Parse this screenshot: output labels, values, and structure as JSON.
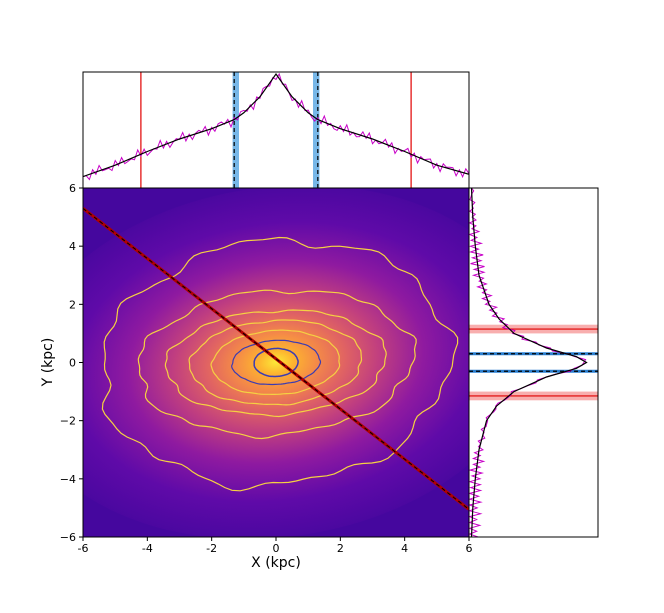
{
  "chart_data": {
    "type": "heatmap",
    "title": "",
    "xlabel": "X (kpc)",
    "ylabel": "Y (kpc)",
    "xlim": [
      -6,
      6
    ],
    "ylim": [
      -6,
      6
    ],
    "xticks": [
      "-6",
      "-4",
      "-2",
      "0",
      "2",
      "4",
      "6"
    ],
    "yticks": [
      "6",
      "4",
      "2",
      "0",
      "−2",
      "−4",
      "−6"
    ],
    "colormap": "plasma",
    "contour_color": "#f5d142",
    "inner_contour_color": "#3b3bb3",
    "bar_line": {
      "x": [
        -6,
        6
      ],
      "y": [
        5.3,
        -5.05
      ],
      "color_outer": "#b00000",
      "color_inner": "#000000"
    },
    "top_panel": {
      "profile_color": "#c800c8",
      "model_color": "#000000",
      "red_lines_x": [
        -4.2,
        4.2
      ],
      "dashed_lines_x": [
        -1.3,
        1.3
      ],
      "blue_band_x": [
        [
          -1.35,
          -1.15
        ],
        [
          1.15,
          1.35
        ]
      ],
      "model_profile": [
        [
          -6,
          0.1
        ],
        [
          -5,
          0.2
        ],
        [
          -4,
          0.32
        ],
        [
          -3,
          0.43
        ],
        [
          -2,
          0.52
        ],
        [
          -1.3,
          0.6
        ],
        [
          -1,
          0.66
        ],
        [
          -0.5,
          0.8
        ],
        [
          0,
          1.0
        ],
        [
          0.5,
          0.8
        ],
        [
          1,
          0.66
        ],
        [
          1.3,
          0.6
        ],
        [
          2,
          0.52
        ],
        [
          3,
          0.43
        ],
        [
          4,
          0.32
        ],
        [
          5,
          0.2
        ],
        [
          6,
          0.12
        ]
      ]
    },
    "right_panel": {
      "profile_color": "#c800c8",
      "model_color": "#000000",
      "red_bands_y": [
        [
          1.0,
          1.3
        ],
        [
          -1.3,
          -1.0
        ]
      ],
      "dashed_lines_y": [
        0.3,
        -0.3
      ],
      "model_profile": [
        [
          6,
          0.02
        ],
        [
          5,
          0.03
        ],
        [
          4,
          0.05
        ],
        [
          3,
          0.08
        ],
        [
          2,
          0.16
        ],
        [
          1.5,
          0.24
        ],
        [
          1,
          0.36
        ],
        [
          0.5,
          0.62
        ],
        [
          0.2,
          0.86
        ],
        [
          0,
          0.94
        ],
        [
          -0.2,
          0.86
        ],
        [
          -0.5,
          0.62
        ],
        [
          -1,
          0.36
        ],
        [
          -1.5,
          0.22
        ],
        [
          -2,
          0.14
        ],
        [
          -3,
          0.08
        ],
        [
          -4,
          0.05
        ],
        [
          -5,
          0.03
        ],
        [
          -6,
          0.02
        ]
      ]
    }
  }
}
